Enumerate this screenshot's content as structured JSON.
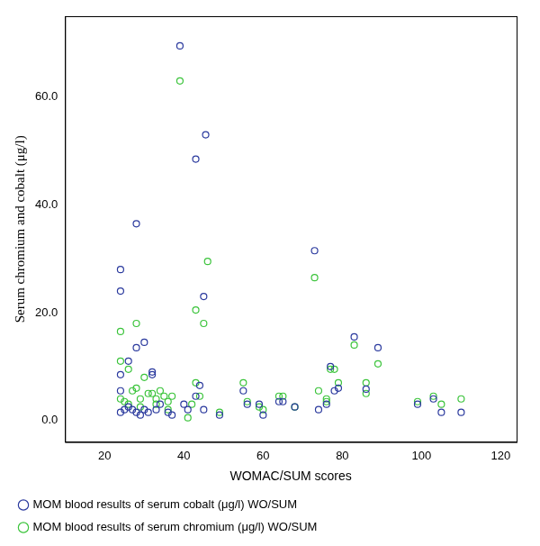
{
  "chart_data": {
    "type": "scatter",
    "x_label": "WOMAC/SUM scores",
    "y_label": "Serum chromium and cobalt (μg/l)",
    "xlim": [
      10,
      124
    ],
    "xticks": [
      20,
      40,
      60,
      80,
      100,
      120
    ],
    "ylim": [
      -4,
      75
    ],
    "yticks": [
      {
        "value": 0,
        "label": "0.0"
      },
      {
        "value": 20,
        "label": "20.0"
      },
      {
        "value": 40,
        "label": "40.0"
      },
      {
        "value": 60,
        "label": "60.0"
      }
    ],
    "grid": false,
    "legend": "bottom",
    "marker": "circle",
    "series": [
      {
        "name": "MOM blood results of serum cobalt (μg/l) WO/SUM",
        "color": "#2b3a9e",
        "x": [
          39,
          43,
          45.5,
          28,
          24,
          24,
          73,
          45,
          30,
          28,
          83,
          89,
          32,
          32,
          24,
          24,
          26,
          77,
          78,
          79,
          86,
          43,
          44,
          55,
          56,
          59,
          64,
          65,
          68,
          74,
          76,
          99,
          103,
          105,
          110,
          24,
          25,
          26,
          27,
          28,
          29,
          30,
          31,
          33,
          34,
          36,
          37,
          40,
          45,
          49,
          60,
          41
        ],
        "values": [
          69.5,
          48.5,
          53,
          36.5,
          28,
          24,
          31.5,
          23,
          14.5,
          13.5,
          15.5,
          13.5,
          9,
          8.5,
          8.5,
          5.5,
          11,
          10,
          5.5,
          6,
          5.8,
          4.5,
          6.5,
          5.5,
          3,
          3,
          3.5,
          3.5,
          2.5,
          2,
          3,
          3,
          4,
          1.5,
          1.5,
          1.5,
          2,
          2.5,
          2,
          1.5,
          1,
          2,
          1.5,
          2,
          3,
          1.5,
          1,
          3,
          2,
          1,
          1,
          2
        ]
      },
      {
        "name": "MOM blood results of serum chromium (μg/l) WO/SUM",
        "color": "#3cc43c",
        "x": [
          39,
          46,
          73,
          43,
          45,
          28,
          24,
          24,
          26,
          30,
          35,
          83,
          89,
          77,
          78,
          55,
          56,
          59,
          60,
          64,
          65,
          68,
          74,
          76,
          76,
          79,
          86,
          86,
          99,
          103,
          105,
          110,
          43,
          44,
          41,
          42,
          49,
          24,
          25,
          26,
          27,
          28,
          29,
          29,
          31,
          33,
          33,
          34,
          36,
          37,
          36,
          32
        ],
        "values": [
          63,
          29.5,
          26.5,
          20.5,
          18,
          18,
          16.5,
          11,
          9.5,
          8,
          4.5,
          14,
          10.5,
          9.5,
          9.5,
          7,
          3.5,
          2.5,
          2,
          4.5,
          4.5,
          2.5,
          5.5,
          4,
          3.5,
          7,
          7,
          5,
          3.5,
          4.5,
          3,
          4,
          7,
          4.5,
          0.5,
          3,
          1.5,
          4,
          3.5,
          3,
          5.5,
          6,
          4,
          2.5,
          5,
          4,
          3,
          5.5,
          3.5,
          4.5,
          2,
          5
        ]
      }
    ]
  }
}
